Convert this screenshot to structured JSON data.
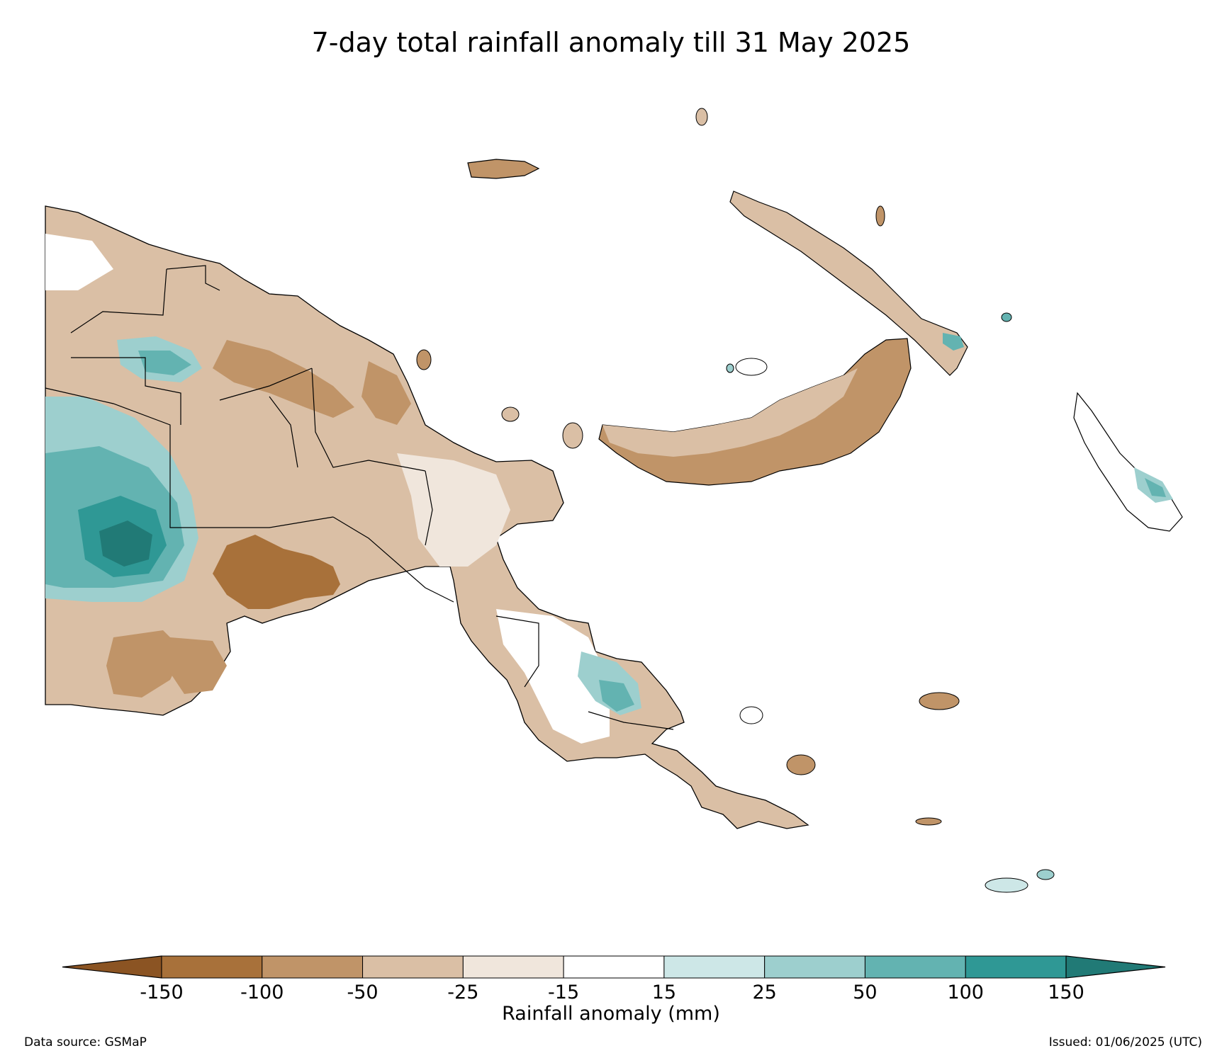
{
  "title": "7-day total rainfall anomaly till 31 May 2025",
  "map": {
    "region": "Papua New Guinea",
    "colorbar": {
      "label": "Rainfall anomaly (mm)",
      "ticks": [
        "-150",
        "-100",
        "-50",
        "-25",
        "-15",
        "15",
        "25",
        "50",
        "100",
        "150"
      ],
      "bin_colors": [
        "#8b5423",
        "#a8713a",
        "#c09468",
        "#dabfa5",
        "#f0e6dc",
        "#ffffff",
        "#cde7e7",
        "#9dcfce",
        "#63b3b1",
        "#2f9895",
        "#217a76"
      ],
      "extend": "both"
    },
    "legend_ranges": [
      {
        "range": "< -150",
        "color": "#8b5423"
      },
      {
        "range": "-150 to -100",
        "color": "#a8713a"
      },
      {
        "range": "-100 to -50",
        "color": "#c09468"
      },
      {
        "range": "-50 to -25",
        "color": "#dabfa5"
      },
      {
        "range": "-25 to -15",
        "color": "#f0e6dc"
      },
      {
        "range": "-15 to 15",
        "color": "#ffffff"
      },
      {
        "range": "15 to 25",
        "color": "#cde7e7"
      },
      {
        "range": "25 to 50",
        "color": "#9dcfce"
      },
      {
        "range": "50 to 100",
        "color": "#63b3b1"
      },
      {
        "range": "100 to 150",
        "color": "#2f9895"
      },
      {
        "range": "> 150",
        "color": "#217a76"
      }
    ]
  },
  "footer": {
    "source": "Data source: GSMaP",
    "issued": "Issued: 01/06/2025 (UTC)"
  }
}
